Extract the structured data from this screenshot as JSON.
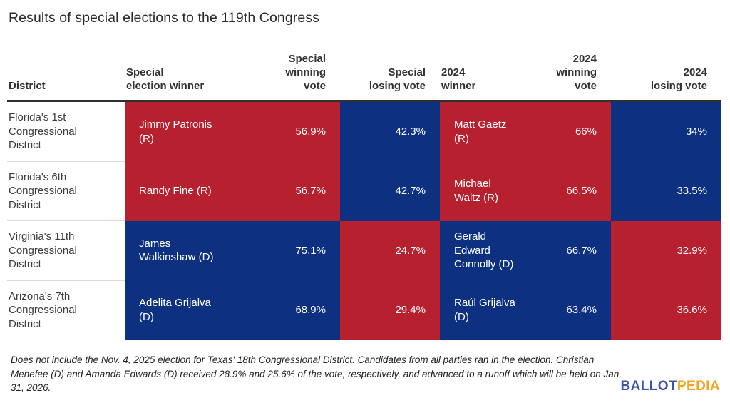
{
  "title": "Results of special elections to the 119th Congress",
  "colors": {
    "republican_red": "#b7212f",
    "democrat_blue": "#0d3180",
    "logo_blue": "#3c55a6",
    "logo_orange": "#f7a21c"
  },
  "table": {
    "headers": [
      "District",
      "Special\nelection winner",
      "Special\nwinning\nvote",
      "Special\nlosing vote",
      "2024\nwinner",
      "2024\nwinning\nvote",
      "2024\nlosing vote"
    ],
    "rows": [
      {
        "district": "Florida's 1st\nCongressional\nDistrict",
        "special_winner": "Jimmy Patronis\n(R)",
        "special_winner_party": "R",
        "special_winning_vote": "56.9%",
        "special_loser_party": "D",
        "special_losing_vote": "42.3%",
        "winner_2024": "Matt Gaetz\n(R)",
        "winner_2024_party": "R",
        "winning_vote_2024": "66%",
        "loser_2024_party": "D",
        "losing_vote_2024": "34%"
      },
      {
        "district": "Florida's 6th\nCongressional\nDistrict",
        "special_winner": "Randy Fine (R)",
        "special_winner_party": "R",
        "special_winning_vote": "56.7%",
        "special_loser_party": "D",
        "special_losing_vote": "42.7%",
        "winner_2024": "Michael\nWaltz (R)",
        "winner_2024_party": "R",
        "winning_vote_2024": "66.5%",
        "loser_2024_party": "D",
        "losing_vote_2024": "33.5%"
      },
      {
        "district": "Virginia's 11th\nCongressional\nDistrict",
        "special_winner": "James\nWalkinshaw (D)",
        "special_winner_party": "D",
        "special_winning_vote": "75.1%",
        "special_loser_party": "R",
        "special_losing_vote": "24.7%",
        "winner_2024": "Gerald\nEdward\nConnolly (D)",
        "winner_2024_party": "D",
        "winning_vote_2024": "66.7%",
        "loser_2024_party": "R",
        "losing_vote_2024": "32.9%"
      },
      {
        "district": "Arizona's 7th\nCongressional\nDistrict",
        "special_winner": "Adelita Grijalva\n(D)",
        "special_winner_party": "D",
        "special_winning_vote": "68.9%",
        "special_loser_party": "R",
        "special_losing_vote": "29.4%",
        "winner_2024": "Raúl Grijalva\n(D)",
        "winner_2024_party": "D",
        "winning_vote_2024": "63.4%",
        "loser_2024_party": "R",
        "losing_vote_2024": "36.6%"
      }
    ]
  },
  "footnote": "Does not include the Nov. 4, 2025 election for Texas' 18th Congressional District. Candidates from all parties ran in the election. Christian Menefee (D) and Amanda Edwards (D) received 28.9% and 25.6% of the vote, respectively, and advanced to a runoff which will be held on Jan. 31, 2026.",
  "logo": {
    "part1": "BALLOT",
    "part2": "PEDIA"
  },
  "chart_data": {
    "type": "table",
    "title": "Results of special elections to the 119th Congress",
    "columns": [
      "District",
      "Special election winner",
      "Special winning vote",
      "Special losing vote",
      "2024 winner",
      "2024 winning vote",
      "2024 losing vote"
    ],
    "rows": [
      [
        "Florida's 1st Congressional District",
        "Jimmy Patronis (R)",
        "56.9%",
        "42.3%",
        "Matt Gaetz (R)",
        "66%",
        "34%"
      ],
      [
        "Florida's 6th Congressional District",
        "Randy Fine (R)",
        "56.7%",
        "42.7%",
        "Michael Waltz (R)",
        "66.5%",
        "33.5%"
      ],
      [
        "Virginia's 11th Congressional District",
        "James Walkinshaw (D)",
        "75.1%",
        "24.7%",
        "Gerald Edward Connolly (D)",
        "66.7%",
        "32.9%"
      ],
      [
        "Arizona's 7th Congressional District",
        "Adelita Grijalva (D)",
        "68.9%",
        "29.4%",
        "Raúl Grijalva (D)",
        "63.4%",
        "36.6%"
      ]
    ],
    "layout_hints": {
      "winner_and_vote_cells_colored_by_party": true,
      "republican_color": "#b7212f",
      "democrat_color": "#0d3180"
    }
  }
}
